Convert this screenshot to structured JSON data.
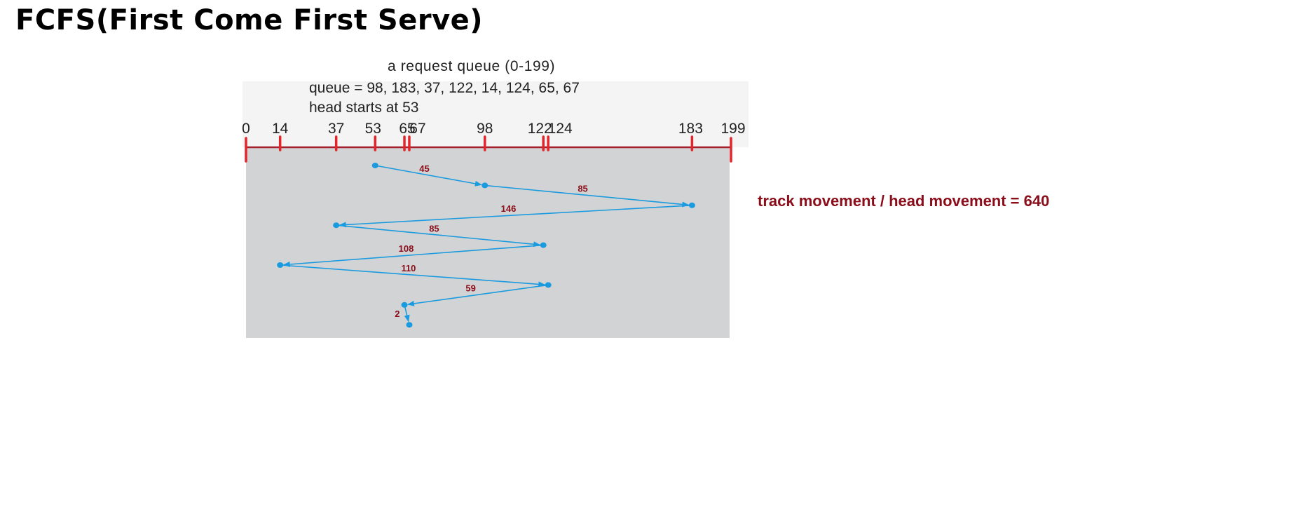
{
  "title": "FCFS(First Come First Serve)",
  "diagram": {
    "caption": "a request queue (0-199)",
    "queue_text": "queue = 98, 183, 37, 122, 14, 124, 65, 67",
    "head_text": "head starts at 53",
    "axis_min": 0,
    "axis_max": 199,
    "ticks": [
      0,
      14,
      37,
      53,
      65,
      67,
      98,
      122,
      124,
      183,
      199
    ],
    "tick_labels": [
      "0",
      "14",
      "37",
      "53",
      "65",
      "67",
      "98",
      "122",
      "124",
      "183",
      "199"
    ],
    "head_start": 53,
    "sequence": [
      53,
      98,
      183,
      37,
      122,
      14,
      124,
      65,
      67
    ],
    "distances": [
      "45",
      "85",
      "146",
      "85",
      "108",
      "110",
      "59",
      "2"
    ],
    "colors": {
      "axis": "#a41f2c",
      "tick": "#e3242b",
      "path": "#1a9be0",
      "label": "#8b0d1a",
      "plot_bg": "#d2d3d4"
    }
  },
  "result_text": "track movement / head movement = 640"
}
